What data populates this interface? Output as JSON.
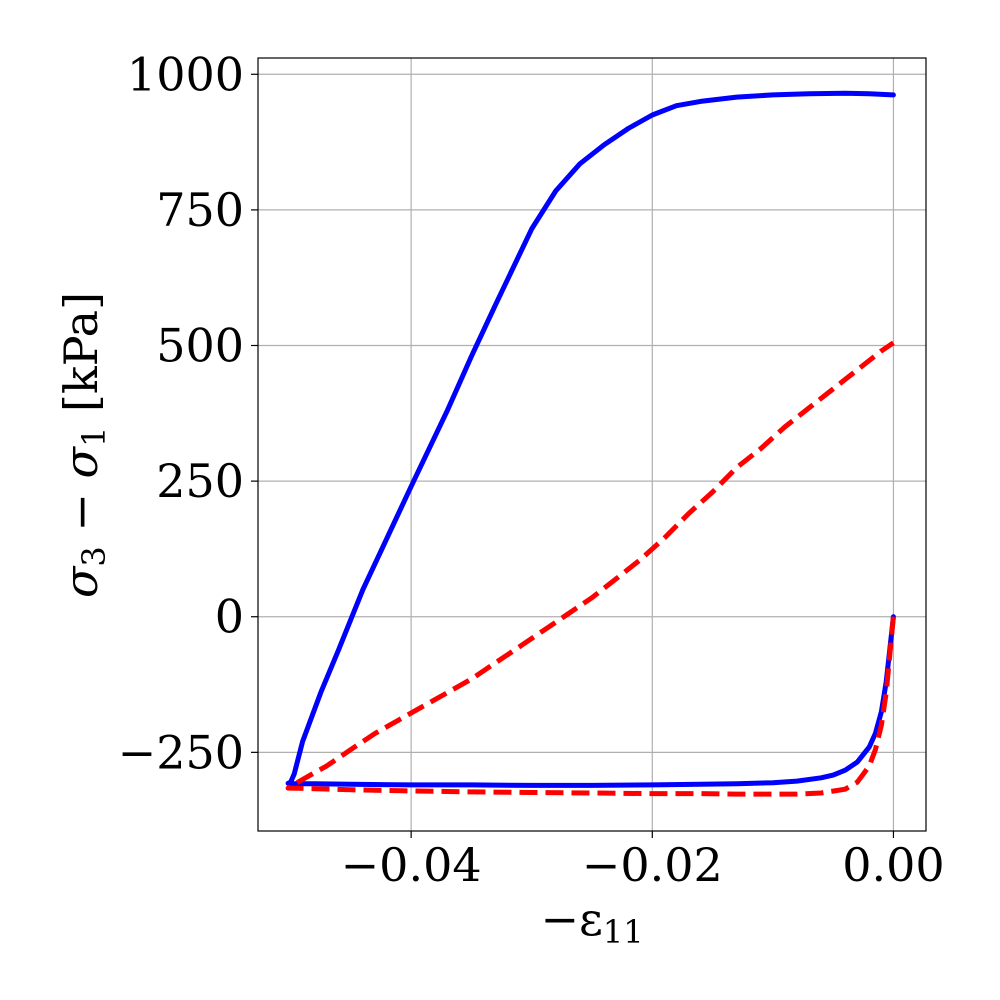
{
  "chart_data": {
    "type": "line",
    "xlabel_main": "−ε",
    "xlabel_sub": "11",
    "ylabel_sigma1": "σ",
    "ylabel_sub1": "3",
    "ylabel_minus": " − ",
    "ylabel_sigma2": "σ",
    "ylabel_sub2": "1",
    "ylabel_unit": " [kPa]",
    "xlim": [
      -0.0527,
      0.0027
    ],
    "ylim": [
      -395,
      1030
    ],
    "xticks": [
      -0.04,
      -0.02,
      0.0
    ],
    "xtick_labels": [
      "−0.04",
      "−0.02",
      "0.00"
    ],
    "yticks": [
      -250,
      0,
      250,
      500,
      750,
      1000
    ],
    "ytick_labels": [
      "−250",
      "0",
      "250",
      "500",
      "750",
      "1000"
    ],
    "grid": true,
    "series": [
      {
        "color": "#0000ff",
        "style": "solid",
        "x": [
          0.0,
          -0.0003,
          -0.0006,
          -0.001,
          -0.0015,
          -0.002,
          -0.003,
          -0.004,
          -0.005,
          -0.006,
          -0.008,
          -0.01,
          -0.013,
          -0.016,
          -0.02,
          -0.025,
          -0.03,
          -0.035,
          -0.04,
          -0.045,
          -0.048,
          -0.05,
          -0.0502,
          -0.05,
          -0.0497,
          -0.049,
          -0.0475,
          -0.046,
          -0.044,
          -0.042,
          -0.04,
          -0.037,
          -0.035,
          -0.033,
          -0.03,
          -0.028,
          -0.026,
          -0.024,
          -0.022,
          -0.02,
          -0.018,
          -0.016,
          -0.013,
          -0.01,
          -0.007,
          -0.004,
          -0.002,
          0.0
        ],
        "y": [
          0,
          -60,
          -120,
          -175,
          -215,
          -240,
          -268,
          -283,
          -292,
          -297,
          -303,
          -306,
          -308,
          -309,
          -310,
          -311,
          -311,
          -310,
          -310,
          -309,
          -308,
          -308,
          -307,
          -305,
          -290,
          -230,
          -140,
          -60,
          50,
          145,
          240,
          380,
          480,
          575,
          715,
          785,
          835,
          870,
          900,
          925,
          942,
          950,
          958,
          962,
          964,
          965,
          964,
          962
        ],
        "linewidth": 5
      },
      {
        "color": "#ff0000",
        "style": "dashed",
        "x": [
          0.0,
          -0.0003,
          -0.0006,
          -0.001,
          -0.0015,
          -0.002,
          -0.003,
          -0.004,
          -0.006,
          -0.008,
          -0.01,
          -0.013,
          -0.016,
          -0.02,
          -0.025,
          -0.03,
          -0.035,
          -0.04,
          -0.045,
          -0.048,
          -0.05,
          -0.0502,
          -0.049,
          -0.047,
          -0.045,
          -0.043,
          -0.041,
          -0.039,
          -0.037,
          -0.035,
          -0.033,
          -0.031,
          -0.029,
          -0.027,
          -0.025,
          -0.023,
          -0.021,
          -0.019,
          -0.017,
          -0.015,
          -0.013,
          -0.011,
          -0.009,
          -0.007,
          -0.005,
          -0.003,
          -0.001,
          0.0
        ],
        "y": [
          0,
          -70,
          -140,
          -200,
          -245,
          -275,
          -305,
          -318,
          -325,
          -327,
          -327,
          -327,
          -326,
          -326,
          -325,
          -324,
          -323,
          -321,
          -319,
          -317,
          -316,
          -316,
          -300,
          -275,
          -245,
          -215,
          -190,
          -165,
          -140,
          -115,
          -85,
          -55,
          -25,
          5,
          35,
          70,
          105,
          145,
          190,
          230,
          275,
          310,
          350,
          385,
          420,
          455,
          490,
          505
        ],
        "linewidth": 5
      }
    ]
  }
}
